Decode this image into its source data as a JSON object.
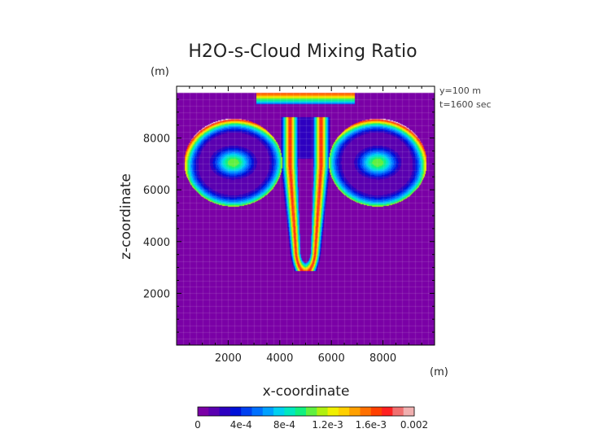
{
  "chart_data": {
    "type": "heatmap",
    "title": "H2O-s-Cloud Mixing Ratio",
    "xlabel": "x-coordinate",
    "ylabel": "z-coordinate",
    "x_unit": "(m)",
    "y_unit": "(m)",
    "annotations": [
      "y=100 m",
      "t=1600 sec"
    ],
    "xlim": [
      0,
      10000
    ],
    "ylim": [
      0,
      10000
    ],
    "x_ticks": [
      2000,
      4000,
      6000,
      8000
    ],
    "y_ticks": [
      2000,
      4000,
      6000,
      8000
    ],
    "colorbar": {
      "min": 0,
      "max": 0.002,
      "tick_labels": [
        "0",
        "4e-4",
        "8e-4",
        "1.2e-3",
        "1.6e-3",
        "0.002"
      ],
      "colors": [
        "#7a00a6",
        "#5a00b0",
        "#2d00c0",
        "#0010d8",
        "#0040f0",
        "#0070ff",
        "#00a0ff",
        "#00d0f0",
        "#00e8c0",
        "#10f080",
        "#60f040",
        "#b0f010",
        "#f0f000",
        "#ffd000",
        "#ffa000",
        "#ff7000",
        "#ff4000",
        "#ff2020",
        "#f07070",
        "#f0b0b0"
      ]
    },
    "background_color": "#7a00a6",
    "description_values": {
      "lobes": [
        {
          "center_x": 2200,
          "center_z": 7000,
          "peak_value": 0.002
        },
        {
          "center_x": 7800,
          "center_z": 7000,
          "peak_value": 0.002
        }
      ],
      "central_tongue": {
        "x": 5000,
        "bottom_z": 2900
      }
    }
  }
}
